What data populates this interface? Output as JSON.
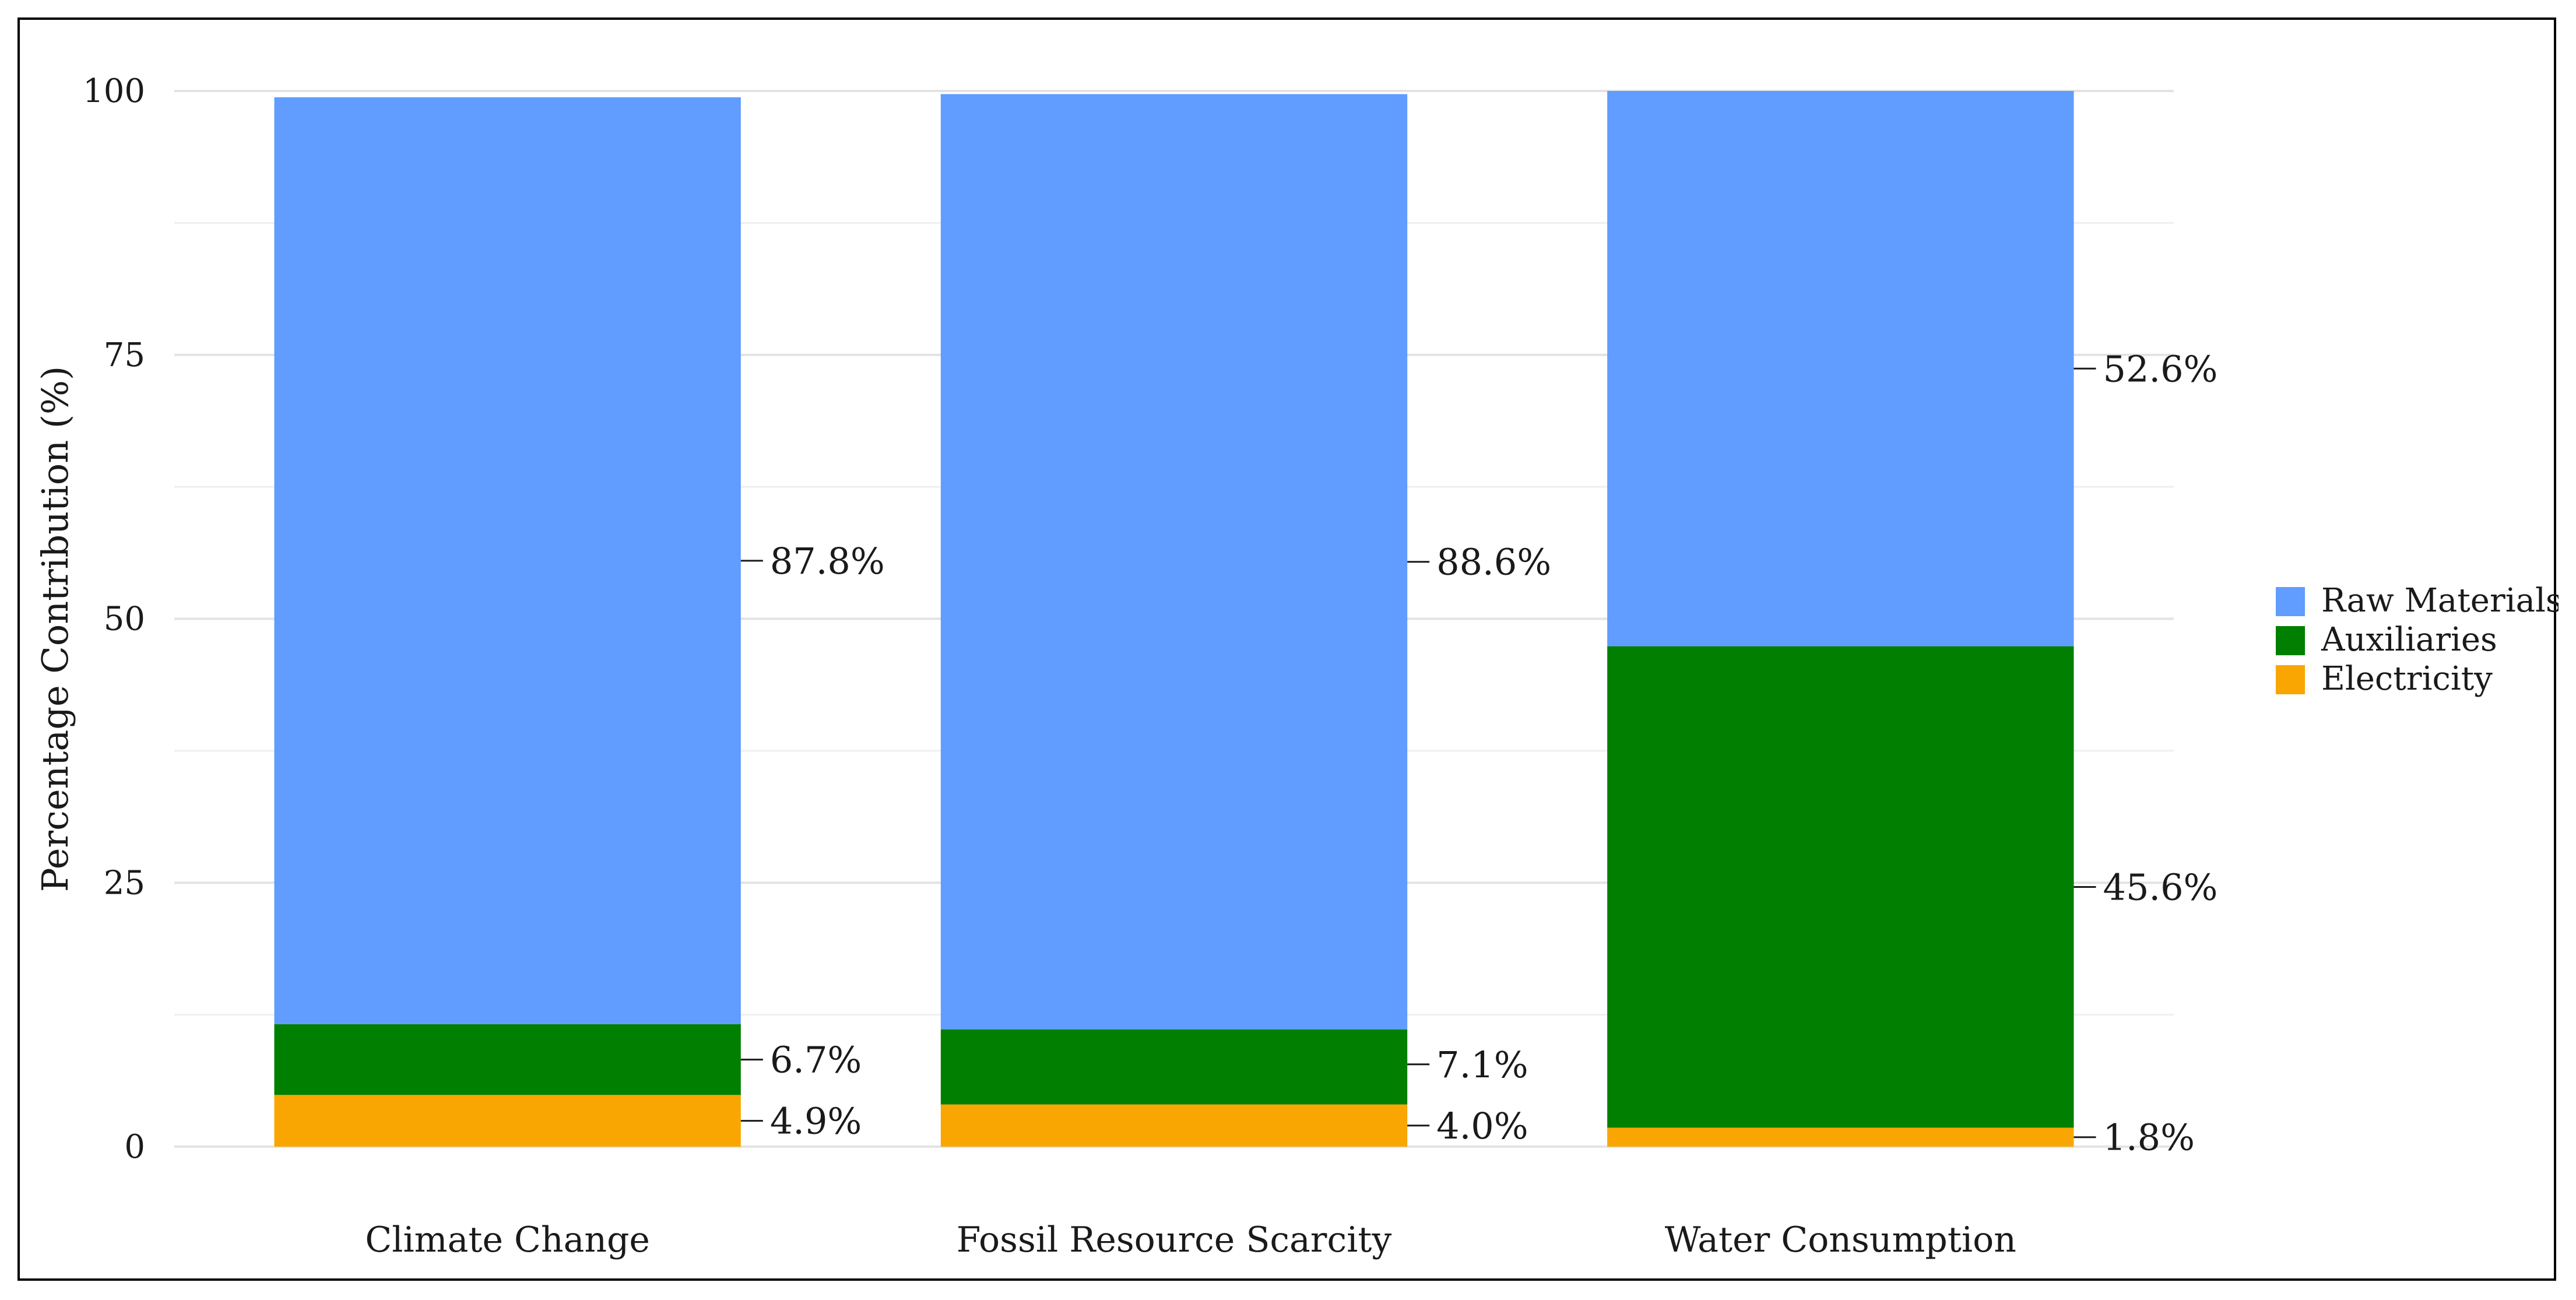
{
  "chart_data": {
    "type": "bar",
    "stacked": true,
    "title": "",
    "xlabel": "",
    "ylabel": "Percentage Contribution (%)",
    "ylim": [
      0,
      100
    ],
    "yticks": [
      0,
      25,
      50,
      75,
      100
    ],
    "grid": true,
    "legend_position": "right",
    "categories": [
      "Climate Change",
      "Fossil Resource Scarcity",
      "Water Consumption"
    ],
    "series": [
      {
        "name": "Electricity",
        "color": "#F9A602",
        "values": [
          4.9,
          4.0,
          1.8
        ],
        "labels": [
          "4.9%",
          "4.0%",
          "1.8%"
        ]
      },
      {
        "name": "Auxiliaries",
        "color": "#007F00",
        "values": [
          6.7,
          7.1,
          45.6
        ],
        "labels": [
          "6.7%",
          "7.1%",
          "45.6%"
        ]
      },
      {
        "name": "Raw Materials",
        "color": "#619CFF",
        "values": [
          87.8,
          88.6,
          52.6
        ],
        "labels": [
          "87.8%",
          "88.6%",
          "52.6%"
        ]
      }
    ],
    "legend_order": [
      "Raw Materials",
      "Auxiliaries",
      "Electricity"
    ]
  }
}
